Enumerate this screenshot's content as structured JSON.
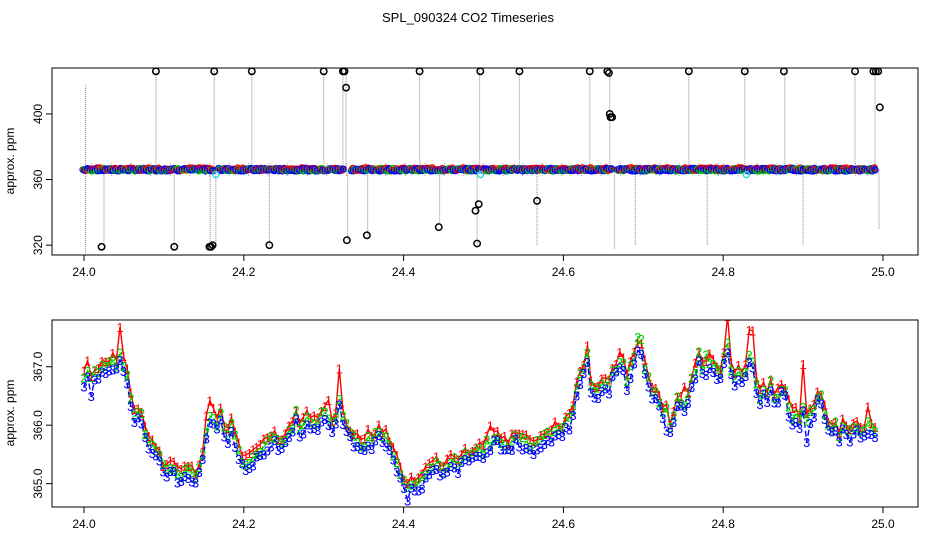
{
  "figure": {
    "title": "SPL_090324  CO2 Timeseries"
  },
  "colors": {
    "frame": "#000000",
    "gray": "#9a9a9a",
    "series1": "#ff0000",
    "series2": "#00cc00",
    "series3": "#0000ff",
    "cyan": "#33dddd",
    "black": "#000000"
  },
  "chart_data": [
    {
      "type": "scatter",
      "title": "",
      "xlabel": "",
      "ylabel": "approx. ppm",
      "xlim": [
        24.0,
        25.0
      ],
      "ylim": [
        314,
        428
      ],
      "xticks": [
        "24.0",
        "24.2",
        "24.4",
        "24.6",
        "24.8",
        "25.0"
      ],
      "xtick_values": [
        24.0,
        24.2,
        24.4,
        24.6,
        24.8,
        25.0
      ],
      "yticks": [
        "320",
        "360",
        "400"
      ],
      "ytick_values": [
        320,
        360,
        400
      ],
      "baseline_ppm": 366,
      "spike_lines": [
        {
          "x": 24.002,
          "y0": 314,
          "y1": 418
        },
        {
          "x": 24.025,
          "y0": 318,
          "y1": 366
        },
        {
          "x": 24.09,
          "y0": 366,
          "y1": 426
        },
        {
          "x": 24.113,
          "y0": 318,
          "y1": 366
        },
        {
          "x": 24.158,
          "y0": 319,
          "y1": 366
        },
        {
          "x": 24.163,
          "y0": 366,
          "y1": 427
        },
        {
          "x": 24.165,
          "y0": 320,
          "y1": 366
        },
        {
          "x": 24.21,
          "y0": 366,
          "y1": 426
        },
        {
          "x": 24.232,
          "y0": 320,
          "y1": 366
        },
        {
          "x": 24.3,
          "y0": 366,
          "y1": 426
        },
        {
          "x": 24.324,
          "y0": 366,
          "y1": 426
        },
        {
          "x": 24.328,
          "y0": 366,
          "y1": 427
        },
        {
          "x": 24.33,
          "y0": 323,
          "y1": 366
        },
        {
          "x": 24.355,
          "y0": 326,
          "y1": 366
        },
        {
          "x": 24.42,
          "y0": 366,
          "y1": 426
        },
        {
          "x": 24.445,
          "y0": 334,
          "y1": 366
        },
        {
          "x": 24.492,
          "y0": 319,
          "y1": 366
        },
        {
          "x": 24.495,
          "y0": 366,
          "y1": 428
        },
        {
          "x": 24.545,
          "y0": 366,
          "y1": 426
        },
        {
          "x": 24.567,
          "y0": 320,
          "y1": 366
        },
        {
          "x": 24.633,
          "y0": 366,
          "y1": 426
        },
        {
          "x": 24.658,
          "y0": 366,
          "y1": 426
        },
        {
          "x": 24.664,
          "y0": 318,
          "y1": 366
        },
        {
          "x": 24.69,
          "y0": 320,
          "y1": 366
        },
        {
          "x": 24.757,
          "y0": 366,
          "y1": 426
        },
        {
          "x": 24.78,
          "y0": 320,
          "y1": 366
        },
        {
          "x": 24.827,
          "y0": 366,
          "y1": 427
        },
        {
          "x": 24.877,
          "y0": 366,
          "y1": 426
        },
        {
          "x": 24.9,
          "y0": 320,
          "y1": 366
        },
        {
          "x": 24.965,
          "y0": 366,
          "y1": 426
        },
        {
          "x": 24.99,
          "y0": 366,
          "y1": 426
        },
        {
          "x": 24.995,
          "y0": 330,
          "y1": 366
        }
      ],
      "black_points": [
        [
          24.022,
          319
        ],
        [
          24.09,
          426
        ],
        [
          24.113,
          319
        ],
        [
          24.157,
          319
        ],
        [
          24.159,
          319
        ],
        [
          24.161,
          320
        ],
        [
          24.163,
          426
        ],
        [
          24.21,
          426
        ],
        [
          24.232,
          320
        ],
        [
          24.3,
          426
        ],
        [
          24.324,
          426
        ],
        [
          24.326,
          426
        ],
        [
          24.328,
          416
        ],
        [
          24.329,
          323
        ],
        [
          24.354,
          326
        ],
        [
          24.42,
          426
        ],
        [
          24.444,
          331
        ],
        [
          24.49,
          341
        ],
        [
          24.492,
          321
        ],
        [
          24.494,
          345
        ],
        [
          24.496,
          426
        ],
        [
          24.545,
          426
        ],
        [
          24.567,
          347
        ],
        [
          24.633,
          426
        ],
        [
          24.655,
          426
        ],
        [
          24.657,
          425
        ],
        [
          24.658,
          400
        ],
        [
          24.659,
          398
        ],
        [
          24.661,
          398
        ],
        [
          24.757,
          426
        ],
        [
          24.827,
          426
        ],
        [
          24.876,
          426
        ],
        [
          24.965,
          426
        ],
        [
          24.988,
          426
        ],
        [
          24.991,
          426
        ],
        [
          24.994,
          426
        ],
        [
          24.996,
          404
        ]
      ],
      "cyan_points": [
        [
          24.165,
          363
        ],
        [
          24.496,
          363
        ],
        [
          24.829,
          363
        ]
      ],
      "legend": []
    },
    {
      "type": "line",
      "title": "",
      "xlabel": "",
      "ylabel": "approx. ppm",
      "xlim": [
        24.0,
        24.99
      ],
      "ylim": [
        364.6,
        367.8
      ],
      "xticks": [
        "24.0",
        "24.2",
        "24.4",
        "24.6",
        "24.8",
        "25.0"
      ],
      "xtick_values": [
        24.0,
        24.2,
        24.4,
        24.6,
        24.8,
        25.0
      ],
      "yticks": [
        "365.0",
        "366.0",
        "367.0"
      ],
      "ytick_values": [
        365.0,
        366.0,
        367.0
      ],
      "anchors": [
        [
          24.0,
          366.8
        ],
        [
          24.005,
          366.95
        ],
        [
          24.01,
          366.7
        ],
        [
          24.015,
          366.95
        ],
        [
          24.02,
          366.85
        ],
        [
          24.025,
          367.05
        ],
        [
          24.03,
          366.95
        ],
        [
          24.035,
          367.1
        ],
        [
          24.04,
          367.0
        ],
        [
          24.045,
          367.2
        ],
        [
          24.05,
          367.0
        ],
        [
          24.055,
          366.75
        ],
        [
          24.06,
          366.3
        ],
        [
          24.065,
          366.1
        ],
        [
          24.07,
          366.25
        ],
        [
          24.075,
          365.9
        ],
        [
          24.08,
          365.75
        ],
        [
          24.085,
          365.6
        ],
        [
          24.09,
          365.55
        ],
        [
          24.095,
          365.4
        ],
        [
          24.1,
          365.2
        ],
        [
          24.11,
          365.3
        ],
        [
          24.12,
          365.1
        ],
        [
          24.13,
          365.2
        ],
        [
          24.14,
          365.1
        ],
        [
          24.145,
          365.3
        ],
        [
          24.15,
          365.5
        ],
        [
          24.155,
          366.0
        ],
        [
          24.16,
          366.3
        ],
        [
          24.165,
          365.9
        ],
        [
          24.17,
          366.2
        ],
        [
          24.175,
          365.9
        ],
        [
          24.18,
          365.8
        ],
        [
          24.185,
          366.0
        ],
        [
          24.19,
          365.7
        ],
        [
          24.195,
          365.5
        ],
        [
          24.2,
          365.3
        ],
        [
          24.21,
          365.4
        ],
        [
          24.22,
          365.55
        ],
        [
          24.23,
          365.7
        ],
        [
          24.24,
          365.8
        ],
        [
          24.245,
          365.6
        ],
        [
          24.25,
          365.7
        ],
        [
          24.26,
          365.9
        ],
        [
          24.265,
          366.2
        ],
        [
          24.27,
          365.9
        ],
        [
          24.28,
          366.1
        ],
        [
          24.29,
          366.0
        ],
        [
          24.295,
          366.1
        ],
        [
          24.3,
          366.2
        ],
        [
          24.31,
          366.0
        ],
        [
          24.315,
          366.1
        ],
        [
          24.32,
          366.5
        ],
        [
          24.325,
          366.05
        ],
        [
          24.33,
          365.9
        ],
        [
          24.34,
          365.7
        ],
        [
          24.35,
          365.6
        ],
        [
          24.355,
          365.8
        ],
        [
          24.36,
          365.7
        ],
        [
          24.37,
          365.9
        ],
        [
          24.375,
          365.7
        ],
        [
          24.38,
          365.8
        ],
        [
          24.385,
          365.5
        ],
        [
          24.39,
          365.4
        ],
        [
          24.395,
          365.2
        ],
        [
          24.4,
          365.0
        ],
        [
          24.405,
          364.85
        ],
        [
          24.41,
          365.0
        ],
        [
          24.415,
          364.9
        ],
        [
          24.42,
          365.0
        ],
        [
          24.425,
          365.1
        ],
        [
          24.43,
          365.2
        ],
        [
          24.44,
          365.3
        ],
        [
          24.45,
          365.2
        ],
        [
          24.46,
          365.4
        ],
        [
          24.47,
          365.3
        ],
        [
          24.475,
          365.5
        ],
        [
          24.48,
          365.4
        ],
        [
          24.49,
          365.55
        ],
        [
          24.5,
          365.5
        ],
        [
          24.505,
          365.7
        ],
        [
          24.51,
          365.6
        ],
        [
          24.515,
          365.9
        ],
        [
          24.52,
          365.7
        ],
        [
          24.53,
          365.6
        ],
        [
          24.54,
          365.8
        ],
        [
          24.55,
          365.7
        ],
        [
          24.56,
          365.6
        ],
        [
          24.57,
          365.7
        ],
        [
          24.58,
          365.8
        ],
        [
          24.59,
          365.9
        ],
        [
          24.6,
          365.9
        ],
        [
          24.605,
          366.1
        ],
        [
          24.61,
          366.0
        ],
        [
          24.615,
          366.5
        ],
        [
          24.62,
          366.8
        ],
        [
          24.625,
          366.9
        ],
        [
          24.63,
          367.2
        ],
        [
          24.635,
          366.6
        ],
        [
          24.64,
          366.5
        ],
        [
          24.645,
          366.6
        ],
        [
          24.65,
          366.8
        ],
        [
          24.655,
          366.5
        ],
        [
          24.66,
          366.9
        ],
        [
          24.665,
          366.9
        ],
        [
          24.67,
          367.1
        ],
        [
          24.675,
          367.0
        ],
        [
          24.68,
          366.7
        ],
        [
          24.685,
          367.0
        ],
        [
          24.69,
          367.2
        ],
        [
          24.695,
          367.4
        ],
        [
          24.7,
          367.1
        ],
        [
          24.705,
          366.8
        ],
        [
          24.71,
          366.6
        ],
        [
          24.715,
          366.5
        ],
        [
          24.72,
          366.4
        ],
        [
          24.725,
          366.2
        ],
        [
          24.73,
          366.3
        ],
        [
          24.735,
          365.8
        ],
        [
          24.74,
          366.3
        ],
        [
          24.745,
          366.5
        ],
        [
          24.75,
          366.2
        ],
        [
          24.755,
          366.4
        ],
        [
          24.76,
          366.7
        ],
        [
          24.765,
          366.9
        ],
        [
          24.77,
          367.2
        ],
        [
          24.775,
          366.9
        ],
        [
          24.78,
          367.0
        ],
        [
          24.785,
          367.1
        ],
        [
          24.79,
          367.0
        ],
        [
          24.795,
          366.8
        ],
        [
          24.8,
          367.1
        ],
        [
          24.805,
          367.4
        ],
        [
          24.81,
          366.9
        ],
        [
          24.815,
          366.8
        ],
        [
          24.82,
          366.9
        ],
        [
          24.825,
          366.8
        ],
        [
          24.83,
          367.0
        ],
        [
          24.835,
          367.3
        ],
        [
          24.84,
          366.8
        ],
        [
          24.845,
          366.4
        ],
        [
          24.85,
          366.6
        ],
        [
          24.855,
          366.5
        ],
        [
          24.86,
          366.7
        ],
        [
          24.865,
          366.4
        ],
        [
          24.87,
          366.5
        ],
        [
          24.875,
          366.7
        ],
        [
          24.88,
          366.4
        ],
        [
          24.885,
          366.1
        ],
        [
          24.89,
          366.2
        ],
        [
          24.895,
          366.0
        ],
        [
          24.9,
          366.3
        ],
        [
          24.905,
          366.0
        ],
        [
          24.91,
          366.2
        ],
        [
          24.915,
          366.3
        ],
        [
          24.92,
          366.6
        ],
        [
          24.925,
          366.3
        ],
        [
          24.93,
          366.0
        ],
        [
          24.935,
          365.9
        ],
        [
          24.94,
          366.0
        ],
        [
          24.945,
          365.8
        ],
        [
          24.95,
          366.0
        ],
        [
          24.955,
          365.9
        ],
        [
          24.96,
          365.8
        ],
        [
          24.965,
          366.0
        ],
        [
          24.97,
          365.9
        ],
        [
          24.975,
          365.8
        ],
        [
          24.98,
          366.0
        ],
        [
          24.985,
          365.9
        ],
        [
          24.99,
          365.85
        ]
      ],
      "series": [
        {
          "name": "1",
          "marker": "1",
          "color_key": "series1",
          "offset": 0.12,
          "spikes": [
            [
              24.045,
              0.35
            ],
            [
              24.155,
              0.2
            ],
            [
              24.305,
              0.25
            ],
            [
              24.32,
              0.35
            ],
            [
              24.51,
              0.2
            ],
            [
              24.75,
              0.25
            ],
            [
              24.805,
              0.45
            ],
            [
              24.835,
              0.35
            ],
            [
              24.9,
              0.6
            ],
            [
              24.98,
              0.2
            ]
          ]
        },
        {
          "name": "2",
          "marker": "2",
          "color_key": "series2",
          "offset": 0.04,
          "spikes": [
            [
              24.695,
              0.15
            ],
            [
              24.78,
              0.15
            ]
          ]
        },
        {
          "name": "3",
          "marker": "3",
          "color_key": "series3",
          "offset": -0.08,
          "spikes": [
            [
              24.01,
              -0.15
            ],
            [
              24.73,
              -0.3
            ],
            [
              24.905,
              -0.2
            ]
          ]
        }
      ],
      "legend": []
    }
  ]
}
